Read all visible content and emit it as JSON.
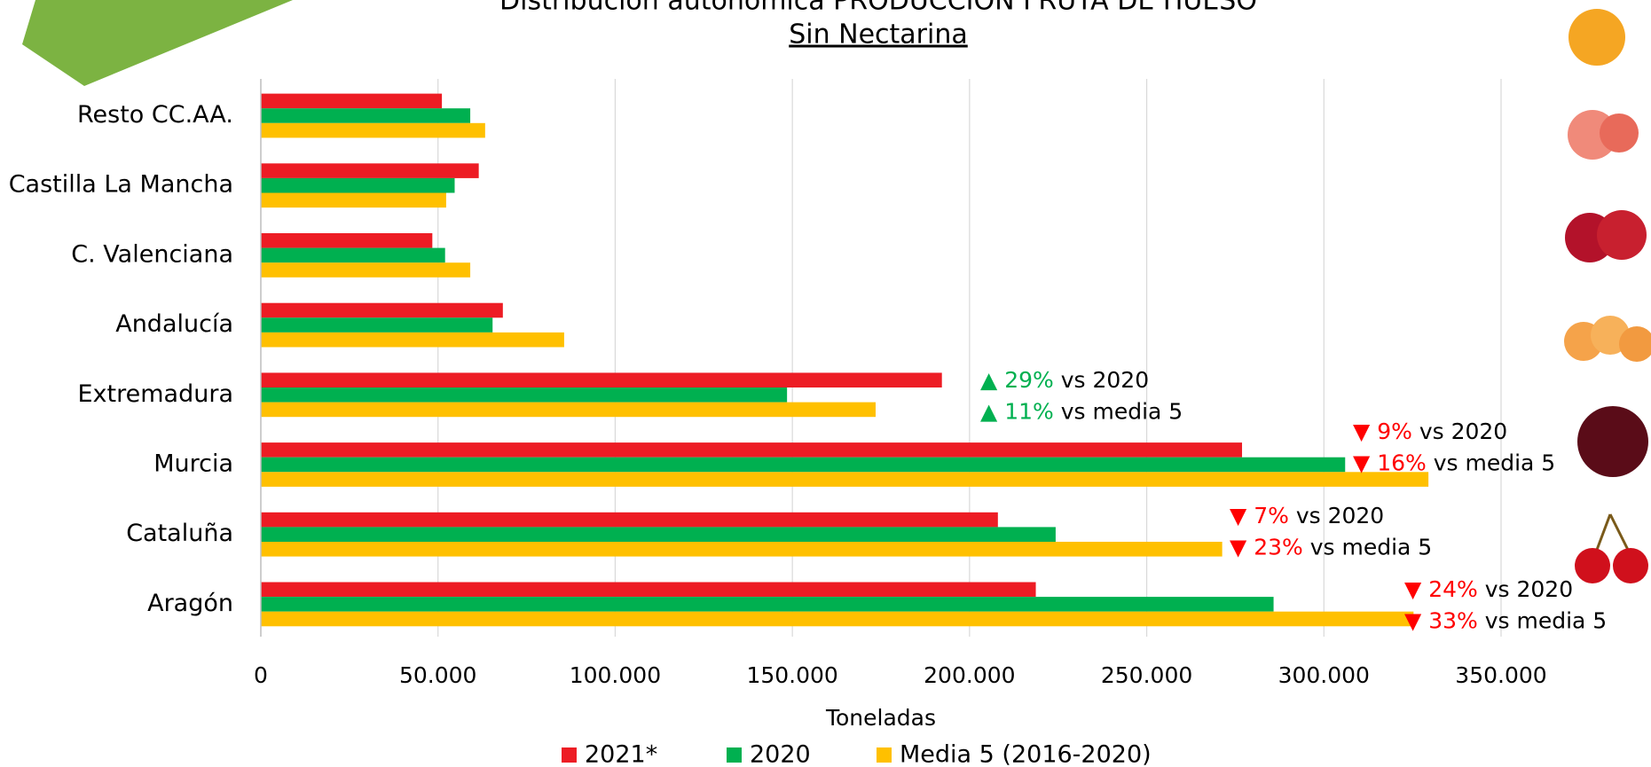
{
  "chart_data": {
    "type": "bar",
    "orientation": "horizontal",
    "title": "Distribución autonómica PRODUCCIÓN FRUTA DE HUESO",
    "subtitle": "Sin Nectarina",
    "x_label": "Toneladas",
    "categories": [
      "Resto CC.AA.",
      "Castilla La Mancha",
      "C. Valenciana",
      "Andalucía",
      "Extremadura",
      "Murcia",
      "Cataluña",
      "Aragón"
    ],
    "series": [
      {
        "name": "2021*",
        "color": "#ed1c24",
        "values": [
          51100,
          61500,
          48400,
          68300,
          192200,
          276900,
          208000,
          218700
        ]
      },
      {
        "name": "2020",
        "color": "#00b050",
        "values": [
          59100,
          54700,
          52000,
          65400,
          148500,
          306000,
          224300,
          285800
        ]
      },
      {
        "name": "Media 5 (2016-2020)",
        "color": "#ffc000",
        "values": [
          63300,
          52300,
          59100,
          85600,
          173500,
          329500,
          271300,
          325300
        ]
      }
    ],
    "xlim": [
      0,
      350000
    ],
    "xticks": [
      0,
      {
        "value": 50000,
        "label": "50.000"
      },
      {
        "value": 100000,
        "label": "100.000"
      },
      {
        "value": 150000,
        "label": "150.000"
      },
      {
        "value": 200000,
        "label": "200.000"
      },
      {
        "value": 250000,
        "label": "250.000"
      },
      {
        "value": 300000,
        "label": "300.000"
      },
      {
        "value": 350000,
        "label": "350.000"
      }
    ],
    "grid": true,
    "legend": "bottom",
    "annotations": [
      [
        {
          "arrow": "▲",
          "pct": "29%",
          "text": "vs 2020",
          "color": "#00b050"
        },
        {
          "arrow": "▲",
          "pct": "11%",
          "text": "vs media 5",
          "color": "#00b050"
        }
      ],
      [
        {
          "arrow": "▼",
          "pct": "9%",
          "text": "vs 2020",
          "color": "#ff0000"
        },
        {
          "arrow": "▼",
          "pct": "16%",
          "text": "vs media 5",
          "color": "#ff0000"
        }
      ],
      [
        {
          "arrow": "▼",
          "pct": "7%",
          "text": "vs 2020",
          "color": "#ff0000"
        },
        {
          "arrow": "▼",
          "pct": "23%",
          "text": "vs media 5",
          "color": "#ff0000"
        }
      ],
      [
        {
          "arrow": "▼",
          "pct": "24%",
          "text": "vs 2020",
          "color": "#ff0000"
        },
        {
          "arrow": "▼",
          "pct": "33%",
          "text": "vs media 5",
          "color": "#ff0000"
        }
      ]
    ]
  }
}
